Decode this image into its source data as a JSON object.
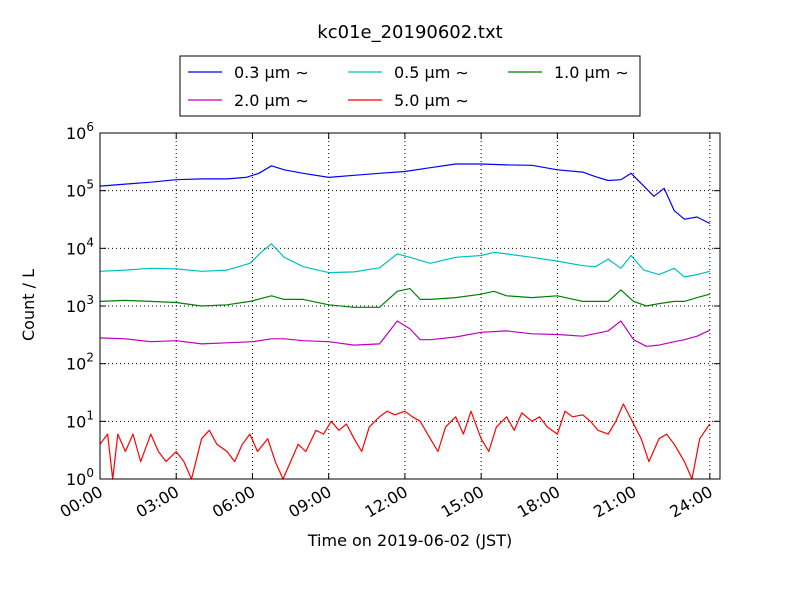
{
  "chart_data": {
    "type": "line",
    "title": "kc01e_20190602.txt",
    "xlabel": "Time on 2019-06-02 (JST)",
    "ylabel": "Count / L",
    "yscale": "log",
    "ylim": [
      1,
      1000000
    ],
    "xlim_hours": [
      0,
      24.4
    ],
    "grid": true,
    "legend_position": "top-center",
    "x_ticks": [
      {
        "label": "00:00",
        "hour": 0
      },
      {
        "label": "03:00",
        "hour": 3
      },
      {
        "label": "06:00",
        "hour": 6
      },
      {
        "label": "09:00",
        "hour": 9
      },
      {
        "label": "12:00",
        "hour": 12
      },
      {
        "label": "15:00",
        "hour": 15
      },
      {
        "label": "18:00",
        "hour": 18
      },
      {
        "label": "21:00",
        "hour": 21
      },
      {
        "label": "24:00",
        "hour": 24
      }
    ],
    "y_ticks": [
      {
        "base": "10",
        "exp": "0",
        "value": 1
      },
      {
        "base": "10",
        "exp": "1",
        "value": 10
      },
      {
        "base": "10",
        "exp": "2",
        "value": 100
      },
      {
        "base": "10",
        "exp": "3",
        "value": 1000
      },
      {
        "base": "10",
        "exp": "4",
        "value": 10000
      },
      {
        "base": "10",
        "exp": "5",
        "value": 100000
      },
      {
        "base": "10",
        "exp": "6",
        "value": 1000000
      }
    ],
    "series": [
      {
        "name": "0.3 μm ∼",
        "color": "#0000ff",
        "points": [
          [
            0,
            120000
          ],
          [
            1,
            130000
          ],
          [
            2,
            140000
          ],
          [
            3,
            155000
          ],
          [
            4,
            160000
          ],
          [
            5,
            160000
          ],
          [
            5.75,
            170000
          ],
          [
            6.25,
            200000
          ],
          [
            6.75,
            270000
          ],
          [
            7.25,
            230000
          ],
          [
            8,
            200000
          ],
          [
            9,
            170000
          ],
          [
            10,
            185000
          ],
          [
            11,
            200000
          ],
          [
            12,
            215000
          ],
          [
            13,
            250000
          ],
          [
            14,
            290000
          ],
          [
            15,
            290000
          ],
          [
            16,
            280000
          ],
          [
            17,
            275000
          ],
          [
            18,
            230000
          ],
          [
            19,
            210000
          ],
          [
            19.5,
            175000
          ],
          [
            20,
            150000
          ],
          [
            20.5,
            155000
          ],
          [
            20.9,
            200000
          ],
          [
            21.4,
            120000
          ],
          [
            21.8,
            80000
          ],
          [
            22.2,
            110000
          ],
          [
            22.6,
            45000
          ],
          [
            23,
            32000
          ],
          [
            23.5,
            35000
          ],
          [
            24,
            27000
          ]
        ]
      },
      {
        "name": "0.5 μm ∼",
        "color": "#00bfbf",
        "points": [
          [
            0,
            4000
          ],
          [
            1,
            4200
          ],
          [
            2,
            4500
          ],
          [
            3,
            4400
          ],
          [
            4,
            4000
          ],
          [
            5,
            4200
          ],
          [
            5.9,
            5500
          ],
          [
            6.4,
            9000
          ],
          [
            6.75,
            12000
          ],
          [
            7.25,
            7000
          ],
          [
            8,
            4800
          ],
          [
            9,
            3800
          ],
          [
            10,
            3900
          ],
          [
            11,
            4600
          ],
          [
            11.7,
            8000
          ],
          [
            12.2,
            7000
          ],
          [
            13,
            5500
          ],
          [
            14,
            7000
          ],
          [
            15,
            7500
          ],
          [
            15.5,
            8500
          ],
          [
            16,
            8000
          ],
          [
            17,
            7000
          ],
          [
            18,
            6000
          ],
          [
            19,
            5000
          ],
          [
            19.5,
            4800
          ],
          [
            20,
            6500
          ],
          [
            20.5,
            4500
          ],
          [
            20.9,
            7500
          ],
          [
            21.4,
            4200
          ],
          [
            22,
            3500
          ],
          [
            22.6,
            4500
          ],
          [
            23,
            3200
          ],
          [
            23.5,
            3500
          ],
          [
            24,
            4000
          ]
        ]
      },
      {
        "name": "1.0 μm ∼",
        "color": "#008000",
        "points": [
          [
            0,
            1200
          ],
          [
            1,
            1250
          ],
          [
            2,
            1200
          ],
          [
            3,
            1150
          ],
          [
            4,
            1000
          ],
          [
            5,
            1050
          ],
          [
            5.9,
            1200
          ],
          [
            6.75,
            1500
          ],
          [
            7.25,
            1300
          ],
          [
            8,
            1300
          ],
          [
            9,
            1050
          ],
          [
            10,
            950
          ],
          [
            11,
            950
          ],
          [
            11.7,
            1800
          ],
          [
            12.2,
            2000
          ],
          [
            12.6,
            1300
          ],
          [
            13,
            1300
          ],
          [
            14,
            1400
          ],
          [
            15,
            1600
          ],
          [
            15.5,
            1800
          ],
          [
            16,
            1500
          ],
          [
            17,
            1400
          ],
          [
            18,
            1500
          ],
          [
            19,
            1200
          ],
          [
            20,
            1200
          ],
          [
            20.5,
            1900
          ],
          [
            21,
            1200
          ],
          [
            21.5,
            1000
          ],
          [
            22,
            1100
          ],
          [
            22.6,
            1200
          ],
          [
            23,
            1200
          ],
          [
            23.5,
            1400
          ],
          [
            24,
            1600
          ]
        ]
      },
      {
        "name": "2.0 μm ∼",
        "color": "#bf00bf",
        "points": [
          [
            0,
            280
          ],
          [
            1,
            270
          ],
          [
            2,
            240
          ],
          [
            3,
            250
          ],
          [
            4,
            220
          ],
          [
            5,
            230
          ],
          [
            6,
            240
          ],
          [
            6.75,
            270
          ],
          [
            7.25,
            270
          ],
          [
            8,
            250
          ],
          [
            9,
            240
          ],
          [
            10,
            210
          ],
          [
            11,
            220
          ],
          [
            11.7,
            550
          ],
          [
            12.2,
            400
          ],
          [
            12.6,
            260
          ],
          [
            13,
            260
          ],
          [
            14,
            290
          ],
          [
            15,
            350
          ],
          [
            16,
            370
          ],
          [
            17,
            330
          ],
          [
            18,
            320
          ],
          [
            19,
            300
          ],
          [
            20,
            370
          ],
          [
            20.5,
            550
          ],
          [
            21,
            260
          ],
          [
            21.5,
            200
          ],
          [
            22,
            210
          ],
          [
            22.6,
            240
          ],
          [
            23,
            260
          ],
          [
            23.5,
            300
          ],
          [
            24,
            380
          ]
        ]
      },
      {
        "name": "5.0 μm ∼",
        "color": "#ff0000",
        "points": [
          [
            0,
            4
          ],
          [
            0.3,
            6
          ],
          [
            0.5,
            1
          ],
          [
            0.7,
            6
          ],
          [
            1,
            3
          ],
          [
            1.3,
            6
          ],
          [
            1.6,
            2
          ],
          [
            2,
            6
          ],
          [
            2.3,
            3
          ],
          [
            2.6,
            2
          ],
          [
            3,
            3
          ],
          [
            3.3,
            2
          ],
          [
            3.6,
            1
          ],
          [
            4,
            5
          ],
          [
            4.3,
            7
          ],
          [
            4.6,
            4
          ],
          [
            5,
            3
          ],
          [
            5.3,
            2
          ],
          [
            5.6,
            4
          ],
          [
            5.9,
            6
          ],
          [
            6.2,
            3
          ],
          [
            6.6,
            5
          ],
          [
            6.9,
            2
          ],
          [
            7.2,
            1
          ],
          [
            7.5,
            2
          ],
          [
            7.8,
            4
          ],
          [
            8.1,
            3
          ],
          [
            8.5,
            7
          ],
          [
            8.8,
            6
          ],
          [
            9.1,
            10
          ],
          [
            9.4,
            7
          ],
          [
            9.7,
            9
          ],
          [
            10,
            5
          ],
          [
            10.3,
            3
          ],
          [
            10.6,
            8
          ],
          [
            11,
            12
          ],
          [
            11.3,
            15
          ],
          [
            11.6,
            13
          ],
          [
            12,
            15
          ],
          [
            12.3,
            12
          ],
          [
            12.6,
            10
          ],
          [
            13,
            5
          ],
          [
            13.3,
            3
          ],
          [
            13.6,
            8
          ],
          [
            14,
            12
          ],
          [
            14.3,
            6
          ],
          [
            14.6,
            15
          ],
          [
            15,
            5
          ],
          [
            15.3,
            3
          ],
          [
            15.6,
            8
          ],
          [
            16,
            12
          ],
          [
            16.3,
            7
          ],
          [
            16.6,
            14
          ],
          [
            17,
            10
          ],
          [
            17.3,
            12
          ],
          [
            17.6,
            8
          ],
          [
            18,
            6
          ],
          [
            18.3,
            15
          ],
          [
            18.6,
            12
          ],
          [
            19,
            13
          ],
          [
            19.3,
            10
          ],
          [
            19.6,
            7
          ],
          [
            20,
            6
          ],
          [
            20.3,
            10
          ],
          [
            20.6,
            20
          ],
          [
            21,
            9
          ],
          [
            21.3,
            5
          ],
          [
            21.6,
            2
          ],
          [
            22,
            5
          ],
          [
            22.3,
            6
          ],
          [
            22.6,
            4
          ],
          [
            23,
            2
          ],
          [
            23.3,
            1
          ],
          [
            23.6,
            5
          ],
          [
            24,
            9
          ]
        ]
      }
    ]
  }
}
